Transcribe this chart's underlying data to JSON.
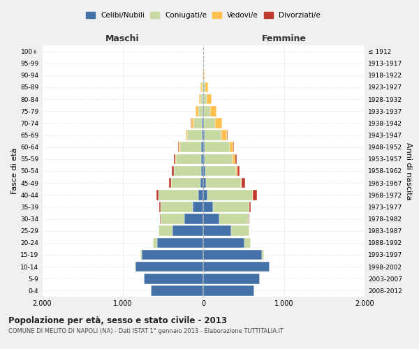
{
  "age_groups": [
    "0-4",
    "5-9",
    "10-14",
    "15-19",
    "20-24",
    "25-29",
    "30-34",
    "35-39",
    "40-44",
    "45-49",
    "50-54",
    "55-59",
    "60-64",
    "65-69",
    "70-74",
    "75-79",
    "80-84",
    "85-89",
    "90-94",
    "95-99",
    "100+"
  ],
  "birth_years": [
    "2008-2012",
    "2003-2007",
    "1998-2002",
    "1993-1997",
    "1988-1992",
    "1983-1987",
    "1978-1982",
    "1973-1977",
    "1968-1972",
    "1963-1967",
    "1958-1962",
    "1953-1957",
    "1948-1952",
    "1943-1947",
    "1938-1942",
    "1933-1937",
    "1928-1932",
    "1923-1927",
    "1918-1922",
    "1913-1917",
    "≤ 1912"
  ],
  "maschi": {
    "celibi": [
      650,
      740,
      840,
      760,
      570,
      380,
      230,
      130,
      60,
      35,
      30,
      25,
      25,
      20,
      15,
      8,
      5,
      2,
      0,
      0,
      0
    ],
    "coniugati": [
      0,
      0,
      5,
      20,
      50,
      170,
      300,
      400,
      490,
      360,
      330,
      310,
      260,
      175,
      110,
      55,
      30,
      15,
      3,
      1,
      0
    ],
    "vedovi": [
      0,
      0,
      0,
      0,
      0,
      1,
      2,
      2,
      2,
      3,
      5,
      8,
      15,
      20,
      25,
      30,
      20,
      15,
      5,
      1,
      0
    ],
    "divorziati": [
      0,
      0,
      0,
      0,
      0,
      2,
      5,
      10,
      25,
      30,
      25,
      20,
      10,
      5,
      3,
      0,
      0,
      0,
      0,
      0,
      0
    ]
  },
  "femmine": {
    "nubili": [
      630,
      700,
      820,
      730,
      510,
      350,
      200,
      120,
      55,
      35,
      25,
      20,
      20,
      15,
      10,
      5,
      3,
      2,
      0,
      0,
      0
    ],
    "coniugate": [
      0,
      0,
      5,
      25,
      80,
      220,
      360,
      450,
      560,
      430,
      380,
      345,
      305,
      210,
      140,
      80,
      40,
      20,
      5,
      1,
      0
    ],
    "vedove": [
      0,
      0,
      0,
      0,
      0,
      1,
      2,
      3,
      4,
      8,
      15,
      30,
      50,
      70,
      80,
      80,
      60,
      35,
      15,
      2,
      0
    ],
    "divorziate": [
      0,
      0,
      0,
      0,
      0,
      3,
      8,
      20,
      50,
      45,
      30,
      20,
      10,
      5,
      2,
      0,
      0,
      0,
      0,
      0,
      0
    ]
  },
  "colors": {
    "celibi": "#4472a8",
    "coniugati": "#c5d9a0",
    "vedovi": "#ffc050",
    "divorziati": "#c0392b"
  },
  "xlim": 2000,
  "title": "Popolazione per età, sesso e stato civile - 2013",
  "subtitle": "COMUNE DI MELITO DI NAPOLI (NA) - Dati ISTAT 1° gennaio 2013 - Elaborazione TUTTITALIA.IT",
  "ylabel_left": "Fasce di età",
  "ylabel_right": "Anni di nascita",
  "xlabel_left": "Maschi",
  "xlabel_right": "Femmine",
  "bg_color": "#f0f0f0",
  "plot_bg_color": "#ffffff"
}
